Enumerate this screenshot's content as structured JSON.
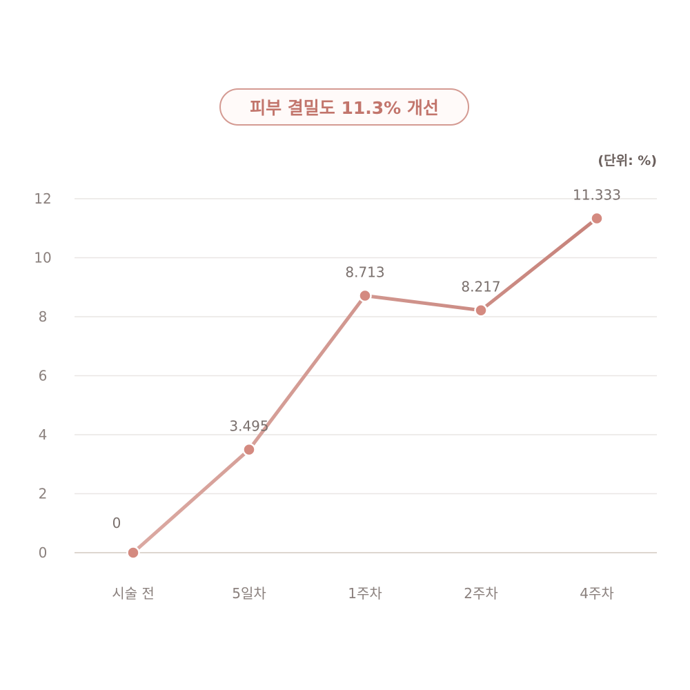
{
  "chart_data": {
    "type": "line",
    "title": "피부 결밀도 11.3% 개선",
    "unit_label": "(단위: %)",
    "categories": [
      "시술 전",
      "5일차",
      "1주차",
      "2주차",
      "4주차"
    ],
    "values": [
      0,
      3.495,
      8.713,
      8.217,
      11.333
    ],
    "data_labels": [
      "0",
      "3.495",
      "8.713",
      "8.217",
      "11.333"
    ],
    "ylim": [
      0,
      12
    ],
    "yticks": [
      0,
      2,
      4,
      6,
      8,
      10,
      12
    ],
    "grid": true,
    "legend": "none",
    "colors": {
      "line_start": "#dba9a2",
      "line_end": "#c7837b",
      "point": "#d48a80",
      "point_stroke": "#ffffff",
      "highlight_label": "#c2756c",
      "grid": "#e9e6e4",
      "baseline": "#ddd6cf",
      "title_border": "#d49a92"
    }
  }
}
